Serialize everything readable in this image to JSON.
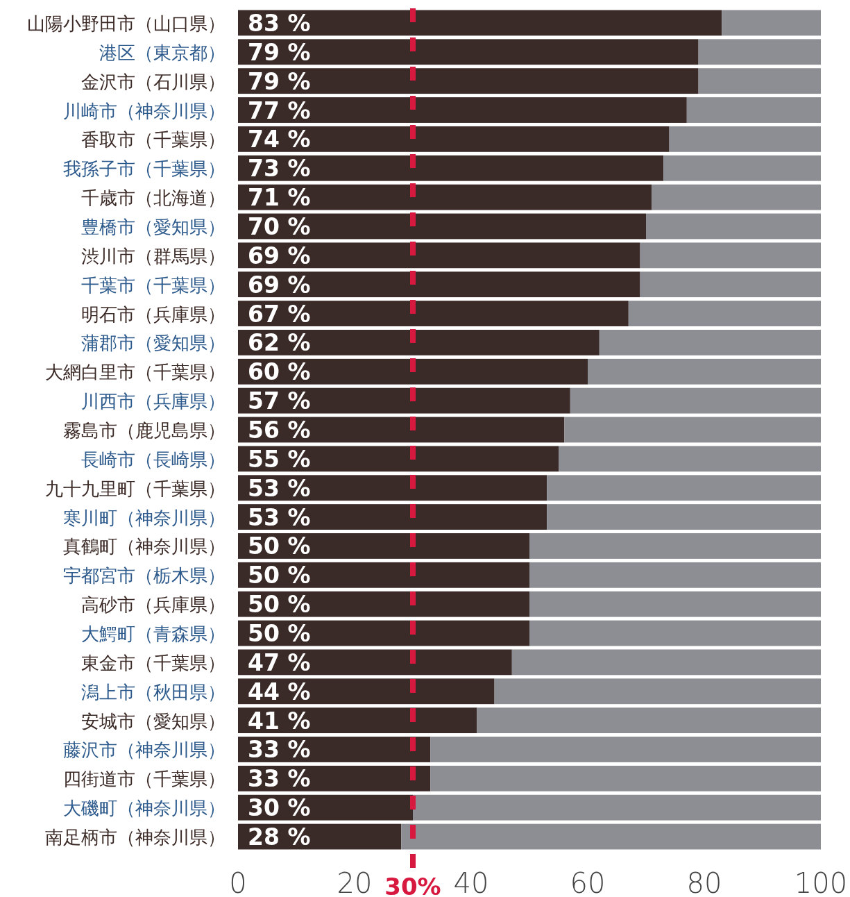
{
  "chart_data": {
    "type": "bar",
    "orientation": "horizontal",
    "stacked": true,
    "categories": [
      "山陽小野田市（山口県）",
      "港区（東京都）",
      "金沢市（石川県）",
      "川崎市（神奈川県）",
      "香取市（千葉県）",
      "我孫子市（千葉県）",
      "千歳市（北海道）",
      "豊橋市（愛知県）",
      "渋川市（群馬県）",
      "千葉市（千葉県）",
      "明石市（兵庫県）",
      "蒲郡市（愛知県）",
      "大網白里市（千葉県）",
      "川西市（兵庫県）",
      "霧島市（鹿児島県）",
      "長崎市（長崎県）",
      "九十九里町（千葉県）",
      "寒川町（神奈川県）",
      "真鶴町（神奈川県）",
      "宇都宮市（栃木県）",
      "高砂市（兵庫県）",
      "大鰐町（青森県）",
      "東金市（千葉県）",
      "潟上市（秋田県）",
      "安城市（愛知県）",
      "藤沢市（神奈川県）",
      "四街道市（千葉県）",
      "大磯町（神奈川県）",
      "南足柄市（神奈川県）"
    ],
    "series": [
      {
        "color": "#3b2b28",
        "values": [
          83,
          79,
          79,
          77,
          74,
          73,
          71,
          70,
          69,
          69,
          67,
          62,
          60,
          57,
          56,
          55,
          53,
          53,
          50,
          50,
          50,
          50,
          47,
          44,
          41,
          33,
          33,
          30,
          28
        ],
        "value_labels": [
          "83 %",
          "79 %",
          "79 %",
          "77 %",
          "74 %",
          "73 %",
          "71 %",
          "70 %",
          "69 %",
          "69 %",
          "67 %",
          "62 %",
          "60 %",
          "57 %",
          "56 %",
          "55 %",
          "53 %",
          "53 %",
          "50 %",
          "50 %",
          "50 %",
          "50 %",
          "47 %",
          "44 %",
          "41 %",
          "33 %",
          "33 %",
          "30 %",
          "28 %"
        ]
      },
      {
        "color": "#8d8e93",
        "values": [
          17,
          21,
          21,
          23,
          26,
          27,
          29,
          30,
          31,
          31,
          33,
          38,
          40,
          43,
          44,
          45,
          47,
          47,
          50,
          50,
          50,
          50,
          53,
          56,
          59,
          67,
          67,
          70,
          72
        ]
      }
    ],
    "xlim": [
      0,
      100
    ],
    "xticks": [
      0,
      20,
      40,
      60,
      80,
      100
    ],
    "ref_lines": [
      {
        "axis": "x",
        "value": 30,
        "label": "30%",
        "color": "#d7193f",
        "line_style": "dashed"
      }
    ]
  }
}
